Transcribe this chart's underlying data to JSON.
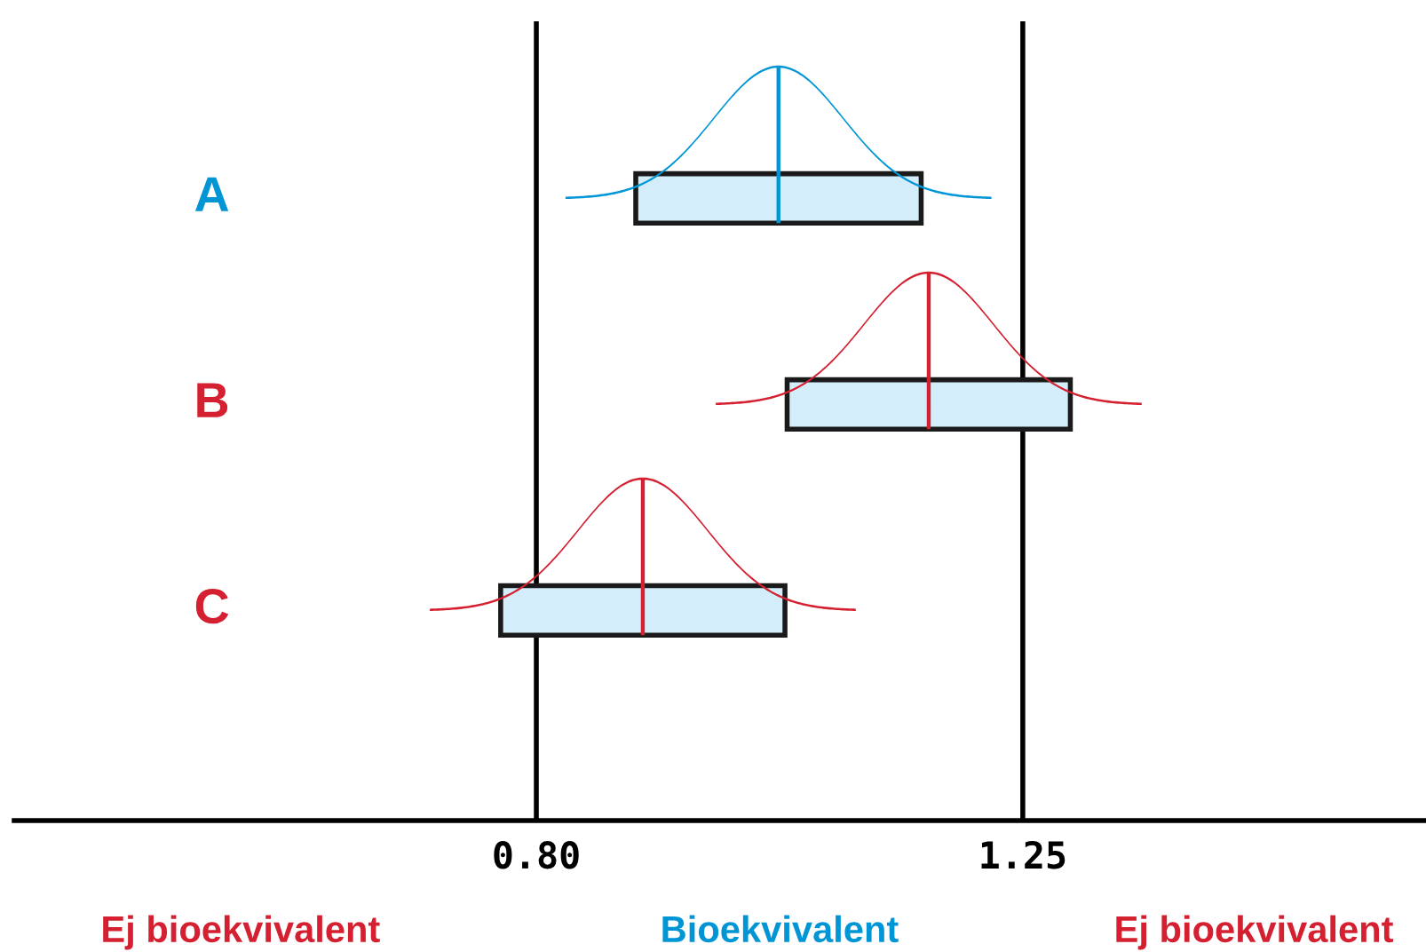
{
  "chart_data": {
    "type": "bar",
    "orientation": "horizontal",
    "categories": [
      "A",
      "B",
      "C"
    ],
    "base": [
      0.892,
      1.032,
      0.767
    ],
    "values": [
      0.264,
      0.262,
      0.263
    ],
    "color": "#d3eefa",
    "xlim": [
      0.317,
      1.623
    ],
    "xticks": [
      {
        "value": 0.8,
        "label": "0.80"
      },
      {
        "value": 1.25,
        "label": "1.25"
      }
    ],
    "ref_lines": [
      {
        "axis": "x",
        "value": 0.8,
        "color": "#000000"
      },
      {
        "axis": "x",
        "value": 1.25,
        "color": "#000000"
      }
    ],
    "annotations": [
      "Ej bioekvivalent",
      "Bioekvivalent",
      "Ej bioekvivalent"
    ],
    "legend": false
  }
}
